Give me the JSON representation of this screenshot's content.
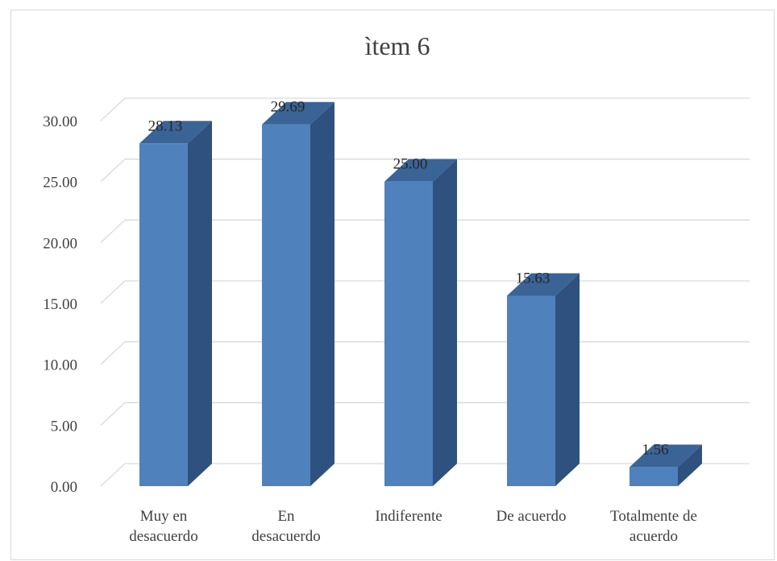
{
  "chart_data": {
    "type": "bar",
    "style": "3d-column",
    "title": "ìtem 6",
    "categories": [
      [
        "Muy en",
        "desacuerdo"
      ],
      [
        "En",
        "desacuerdo"
      ],
      [
        "Indiferente"
      ],
      [
        "De acuerdo"
      ],
      [
        "Totalmente de",
        "acuerdo"
      ]
    ],
    "values": [
      28.13,
      29.69,
      25.0,
      15.63,
      1.56
    ],
    "value_labels": [
      "28.13",
      "29.69",
      "25.00",
      "15.63",
      "1.56"
    ],
    "ylim": [
      0,
      30
    ],
    "yticks": [
      "0.00",
      "5.00",
      "10.00",
      "15.00",
      "20.00",
      "25.00",
      "30.00"
    ],
    "xlabel": "",
    "ylabel": "",
    "grid": true,
    "legend": "none",
    "colors": {
      "front": "#4f81bd",
      "side": "#2e5180",
      "top": "#3a6496",
      "grid": "#d9d9d9",
      "text": "#404040"
    }
  }
}
